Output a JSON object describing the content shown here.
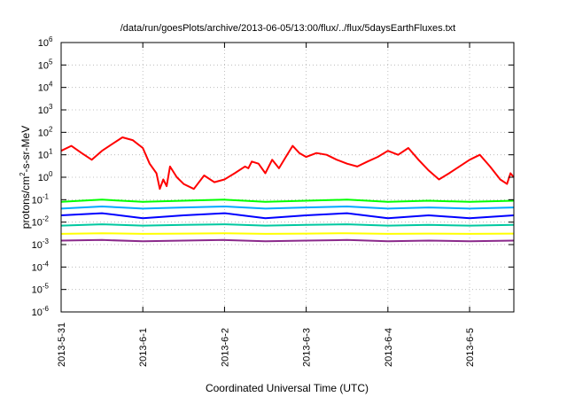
{
  "chart_data": {
    "type": "line",
    "title": "/data/run/goesPlots/archive/2013-06-05/13:00/flux/../flux/5daysEarthFluxes.txt",
    "xlabel": "Coordinated Universal Time (UTC)",
    "ylabel": {
      "pre": "protons/cm",
      "sup": "2",
      "post": "-s-sr-MeV"
    },
    "y_scale": "log",
    "ylim": [
      "1e-6",
      "1e6"
    ],
    "y_ticks": [
      {
        "base": "10",
        "exp": "-6"
      },
      {
        "base": "10",
        "exp": "-5"
      },
      {
        "base": "10",
        "exp": "-4"
      },
      {
        "base": "10",
        "exp": "-3"
      },
      {
        "base": "10",
        "exp": "-2"
      },
      {
        "base": "10",
        "exp": "-1"
      },
      {
        "base": "10",
        "exp": "0"
      },
      {
        "base": "10",
        "exp": "1"
      },
      {
        "base": "10",
        "exp": "2"
      },
      {
        "base": "10",
        "exp": "3"
      },
      {
        "base": "10",
        "exp": "4"
      },
      {
        "base": "10",
        "exp": "5"
      },
      {
        "base": "10",
        "exp": "6"
      }
    ],
    "xlim": [
      "2013-05-31T00:00",
      "2013-06-05T13:00"
    ],
    "x_ticks": [
      "2013-5-31",
      "2013-6-1",
      "2013-6-2",
      "2013-6-3",
      "2013-6-4",
      "2013-6-5"
    ],
    "grid": true,
    "legend": "none",
    "series": [
      {
        "color": "#ff0000",
        "x": [
          "2013-05-31T00:00",
          "2013-05-31T03:00",
          "2013-05-31T06:00",
          "2013-05-31T09:00",
          "2013-05-31T12:00",
          "2013-05-31T15:00",
          "2013-05-31T18:00",
          "2013-05-31T21:00",
          "2013-06-01T00:00",
          "2013-06-01T02:00",
          "2013-06-01T04:00",
          "2013-06-01T05:00",
          "2013-06-01T06:00",
          "2013-06-01T07:00",
          "2013-06-01T08:00",
          "2013-06-01T10:00",
          "2013-06-01T12:00",
          "2013-06-01T15:00",
          "2013-06-01T18:00",
          "2013-06-01T21:00",
          "2013-06-02T00:00",
          "2013-06-02T03:00",
          "2013-06-02T06:00",
          "2013-06-02T07:00",
          "2013-06-02T08:00",
          "2013-06-02T10:00",
          "2013-06-02T12:00",
          "2013-06-02T14:00",
          "2013-06-02T16:00",
          "2013-06-02T18:00",
          "2013-06-02T20:00",
          "2013-06-02T22:00",
          "2013-06-03T00:00",
          "2013-06-03T03:00",
          "2013-06-03T06:00",
          "2013-06-03T09:00",
          "2013-06-03T12:00",
          "2013-06-03T15:00",
          "2013-06-03T18:00",
          "2013-06-03T21:00",
          "2013-06-04T00:00",
          "2013-06-04T03:00",
          "2013-06-04T06:00",
          "2013-06-04T09:00",
          "2013-06-04T12:00",
          "2013-06-04T15:00",
          "2013-06-04T18:00",
          "2013-06-04T21:00",
          "2013-06-05T00:00",
          "2013-06-05T03:00",
          "2013-06-05T06:00",
          "2013-06-05T09:00",
          "2013-06-05T11:00",
          "2013-06-05T12:00",
          "2013-06-05T13:00"
        ],
        "y": [
          15,
          25,
          12,
          6,
          15,
          30,
          60,
          45,
          20,
          4,
          1.5,
          0.3,
          0.8,
          0.4,
          3,
          1,
          0.5,
          0.3,
          1.2,
          0.6,
          0.8,
          1.5,
          3,
          2.5,
          5,
          4,
          1.5,
          6,
          2.5,
          8,
          25,
          12,
          8,
          12,
          10,
          6,
          4,
          3,
          5,
          8,
          15,
          10,
          20,
          6,
          2,
          0.8,
          1.5,
          3,
          6,
          10,
          3,
          0.8,
          0.5,
          1.5,
          1
        ]
      },
      {
        "color": "#00ff00",
        "x": [
          "2013-05-31T00:00",
          "2013-05-31T12:00",
          "2013-06-01T00:00",
          "2013-06-01T12:00",
          "2013-06-02T00:00",
          "2013-06-02T12:00",
          "2013-06-03T00:00",
          "2013-06-03T12:00",
          "2013-06-04T00:00",
          "2013-06-04T12:00",
          "2013-06-05T00:00",
          "2013-06-05T13:00"
        ],
        "y": [
          0.08,
          0.1,
          0.08,
          0.09,
          0.1,
          0.08,
          0.09,
          0.1,
          0.08,
          0.09,
          0.08,
          0.09
        ]
      },
      {
        "color": "#00aaff",
        "x": [
          "2013-05-31T00:00",
          "2013-05-31T12:00",
          "2013-06-01T00:00",
          "2013-06-01T12:00",
          "2013-06-02T00:00",
          "2013-06-02T12:00",
          "2013-06-03T00:00",
          "2013-06-03T12:00",
          "2013-06-04T00:00",
          "2013-06-04T12:00",
          "2013-06-05T00:00",
          "2013-06-05T13:00"
        ],
        "y": [
          0.04,
          0.05,
          0.04,
          0.045,
          0.05,
          0.04,
          0.045,
          0.05,
          0.04,
          0.045,
          0.04,
          0.045
        ]
      },
      {
        "color": "#0000ff",
        "x": [
          "2013-05-31T00:00",
          "2013-05-31T12:00",
          "2013-06-01T00:00",
          "2013-06-01T12:00",
          "2013-06-02T00:00",
          "2013-06-02T12:00",
          "2013-06-03T00:00",
          "2013-06-03T12:00",
          "2013-06-04T00:00",
          "2013-06-04T12:00",
          "2013-06-05T00:00",
          "2013-06-05T13:00"
        ],
        "y": [
          0.02,
          0.025,
          0.015,
          0.02,
          0.025,
          0.015,
          0.02,
          0.025,
          0.015,
          0.02,
          0.015,
          0.02
        ]
      },
      {
        "color": "#00c8a0",
        "x": [
          "2013-05-31T00:00",
          "2013-05-31T12:00",
          "2013-06-01T00:00",
          "2013-06-01T12:00",
          "2013-06-02T00:00",
          "2013-06-02T12:00",
          "2013-06-03T00:00",
          "2013-06-03T12:00",
          "2013-06-04T00:00",
          "2013-06-04T12:00",
          "2013-06-05T00:00",
          "2013-06-05T13:00"
        ],
        "y": [
          0.007,
          0.008,
          0.007,
          0.0075,
          0.008,
          0.007,
          0.0075,
          0.008,
          0.007,
          0.0075,
          0.007,
          0.0075
        ]
      },
      {
        "color": "#ffff00",
        "x": [
          "2013-05-31T00:00",
          "2013-05-31T12:00",
          "2013-06-01T00:00",
          "2013-06-01T12:00",
          "2013-06-02T00:00",
          "2013-06-02T12:00",
          "2013-06-03T00:00",
          "2013-06-03T12:00",
          "2013-06-04T00:00",
          "2013-06-04T12:00",
          "2013-06-05T00:00",
          "2013-06-05T13:00"
        ],
        "y": [
          0.003,
          0.0032,
          0.003,
          0.0031,
          0.0032,
          0.003,
          0.0031,
          0.0032,
          0.003,
          0.0031,
          0.003,
          0.0031
        ]
      },
      {
        "color": "#8b2a8b",
        "x": [
          "2013-05-31T00:00",
          "2013-05-31T12:00",
          "2013-06-01T00:00",
          "2013-06-01T12:00",
          "2013-06-02T00:00",
          "2013-06-02T12:00",
          "2013-06-03T00:00",
          "2013-06-03T12:00",
          "2013-06-04T00:00",
          "2013-06-04T12:00",
          "2013-06-05T00:00",
          "2013-06-05T13:00"
        ],
        "y": [
          0.0015,
          0.0016,
          0.0014,
          0.0015,
          0.0016,
          0.0014,
          0.0015,
          0.0016,
          0.0014,
          0.0015,
          0.0014,
          0.0015
        ]
      }
    ]
  }
}
